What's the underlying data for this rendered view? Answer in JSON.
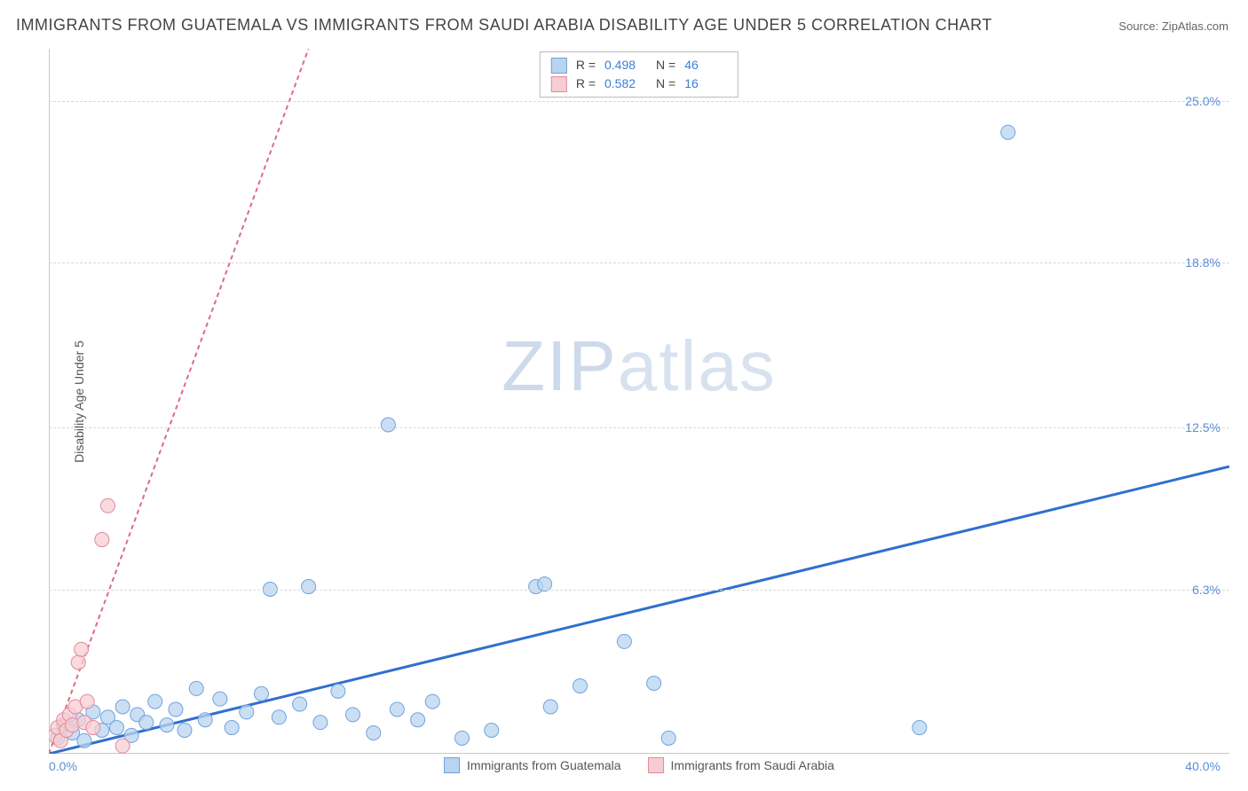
{
  "title": "IMMIGRANTS FROM GUATEMALA VS IMMIGRANTS FROM SAUDI ARABIA DISABILITY AGE UNDER 5 CORRELATION CHART",
  "source_label": "Source:",
  "source_name": "ZipAtlas.com",
  "ylabel": "Disability Age Under 5",
  "watermark_a": "ZIP",
  "watermark_b": "atlas",
  "chart": {
    "type": "scatter",
    "xlim": [
      0,
      40
    ],
    "ylim": [
      0,
      27
    ],
    "x_ticks": [
      "0.0%",
      "40.0%"
    ],
    "y_ticks": [
      {
        "v": 6.3,
        "label": "6.3%"
      },
      {
        "v": 12.5,
        "label": "12.5%"
      },
      {
        "v": 18.8,
        "label": "18.8%"
      },
      {
        "v": 25.0,
        "label": "25.0%"
      }
    ],
    "grid_color": "#d8d8d8",
    "axis_color": "#c8c8c8",
    "background_color": "#ffffff",
    "series": [
      {
        "name": "Immigrants from Guatemala",
        "color_fill": "#b9d4f0",
        "color_stroke": "#6fa3de",
        "trend_color": "#2f6fd0",
        "trend_width": 3,
        "trend_dash": "none",
        "r": 0.498,
        "n": 46,
        "marker_radius": 8,
        "trend": {
          "x1": 0,
          "y1": 0,
          "x2": 40,
          "y2": 11.0
        },
        "points": [
          [
            0.3,
            0.6
          ],
          [
            0.5,
            1.1
          ],
          [
            0.8,
            0.8
          ],
          [
            1.0,
            1.3
          ],
          [
            1.2,
            0.5
          ],
          [
            1.5,
            1.6
          ],
          [
            1.8,
            0.9
          ],
          [
            2.0,
            1.4
          ],
          [
            2.3,
            1.0
          ],
          [
            2.5,
            1.8
          ],
          [
            2.8,
            0.7
          ],
          [
            3.0,
            1.5
          ],
          [
            3.3,
            1.2
          ],
          [
            3.6,
            2.0
          ],
          [
            4.0,
            1.1
          ],
          [
            4.3,
            1.7
          ],
          [
            4.6,
            0.9
          ],
          [
            5.0,
            2.5
          ],
          [
            5.3,
            1.3
          ],
          [
            5.8,
            2.1
          ],
          [
            6.2,
            1.0
          ],
          [
            6.7,
            1.6
          ],
          [
            7.2,
            2.3
          ],
          [
            7.5,
            6.3
          ],
          [
            7.8,
            1.4
          ],
          [
            8.5,
            1.9
          ],
          [
            8.8,
            6.4
          ],
          [
            9.2,
            1.2
          ],
          [
            9.8,
            2.4
          ],
          [
            10.3,
            1.5
          ],
          [
            11.0,
            0.8
          ],
          [
            11.8,
            1.7
          ],
          [
            12.5,
            1.3
          ],
          [
            13.0,
            2.0
          ],
          [
            14.0,
            0.6
          ],
          [
            15.0,
            0.9
          ],
          [
            11.5,
            12.6
          ],
          [
            16.5,
            6.4
          ],
          [
            16.8,
            6.5
          ],
          [
            17.0,
            1.8
          ],
          [
            18.0,
            2.6
          ],
          [
            19.5,
            4.3
          ],
          [
            20.5,
            2.7
          ],
          [
            21.0,
            0.6
          ],
          [
            29.5,
            1.0
          ],
          [
            32.5,
            23.8
          ]
        ]
      },
      {
        "name": "Immigrants from Saudi Arabia",
        "color_fill": "#f6cdd4",
        "color_stroke": "#e48a9a",
        "trend_color": "#e06a84",
        "trend_width": 2,
        "trend_dash": "5,4",
        "r": 0.582,
        "n": 16,
        "marker_radius": 8,
        "trend": {
          "x1": 0,
          "y1": 0,
          "x2": 8.8,
          "y2": 27
        },
        "points": [
          [
            0.2,
            0.7
          ],
          [
            0.3,
            1.0
          ],
          [
            0.4,
            0.5
          ],
          [
            0.5,
            1.3
          ],
          [
            0.6,
            0.9
          ],
          [
            0.7,
            1.5
          ],
          [
            0.8,
            1.1
          ],
          [
            0.9,
            1.8
          ],
          [
            1.0,
            3.5
          ],
          [
            1.1,
            4.0
          ],
          [
            1.2,
            1.2
          ],
          [
            1.3,
            2.0
          ],
          [
            1.5,
            1.0
          ],
          [
            1.8,
            8.2
          ],
          [
            2.0,
            9.5
          ],
          [
            2.5,
            0.3
          ]
        ]
      }
    ]
  },
  "legend_stats_labels": {
    "r": "R =",
    "n": "N ="
  },
  "bottom_legend": [
    {
      "label": "Immigrants from Guatemala",
      "fill": "#b9d4f0",
      "stroke": "#6fa3de"
    },
    {
      "label": "Immigrants from Saudi Arabia",
      "fill": "#f6cdd4",
      "stroke": "#e48a9a"
    }
  ]
}
